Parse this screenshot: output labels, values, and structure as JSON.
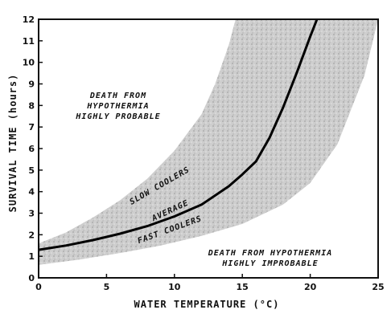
{
  "chart_data": {
    "type": "line",
    "xlabel": "WATER TEMPERATURE (°C)",
    "ylabel": "SURVIVAL TIME (hours)",
    "xlim": [
      0,
      25
    ],
    "ylim": [
      0,
      12
    ],
    "x_ticks": [
      0,
      5,
      10,
      15,
      20,
      25
    ],
    "y_ticks": [
      0,
      1,
      2,
      3,
      4,
      5,
      6,
      7,
      8,
      9,
      10,
      11,
      12
    ],
    "grid": false,
    "series": [
      {
        "name": "AVERAGE",
        "x": [
          0,
          2,
          4,
          6,
          8,
          10,
          12,
          14,
          15,
          16,
          17,
          18,
          19,
          20,
          20.5
        ],
        "y": [
          1.3,
          1.5,
          1.75,
          2.05,
          2.4,
          2.85,
          3.4,
          4.25,
          4.8,
          5.4,
          6.5,
          7.9,
          9.5,
          11.2,
          12
        ]
      }
    ],
    "band": {
      "upper": {
        "x": [
          0,
          2,
          4,
          6,
          8,
          10,
          12,
          13,
          14,
          14.5
        ],
        "y": [
          1.6,
          2.1,
          2.8,
          3.6,
          4.6,
          5.9,
          7.6,
          9.0,
          10.8,
          12
        ]
      },
      "lower": {
        "x": [
          0,
          3,
          6,
          9,
          12,
          15,
          18,
          20,
          22,
          24,
          25
        ],
        "y": [
          0.6,
          0.85,
          1.15,
          1.5,
          1.95,
          2.5,
          3.4,
          4.4,
          6.2,
          9.4,
          12
        ]
      }
    },
    "annotations": [
      {
        "id": "slow",
        "text": "SLOW COOLERS"
      },
      {
        "id": "average",
        "text": "AVERAGE"
      },
      {
        "id": "fast",
        "text": "FAST COOLERS"
      },
      {
        "id": "probable",
        "lines": [
          "DEATH FROM",
          "HYPOTHERMIA",
          "HIGHLY PROBABLE"
        ]
      },
      {
        "id": "improbable",
        "lines": [
          "DEATH FROM HYPOTHERMIA",
          "HIGHLY IMPROBABLE"
        ]
      }
    ]
  }
}
